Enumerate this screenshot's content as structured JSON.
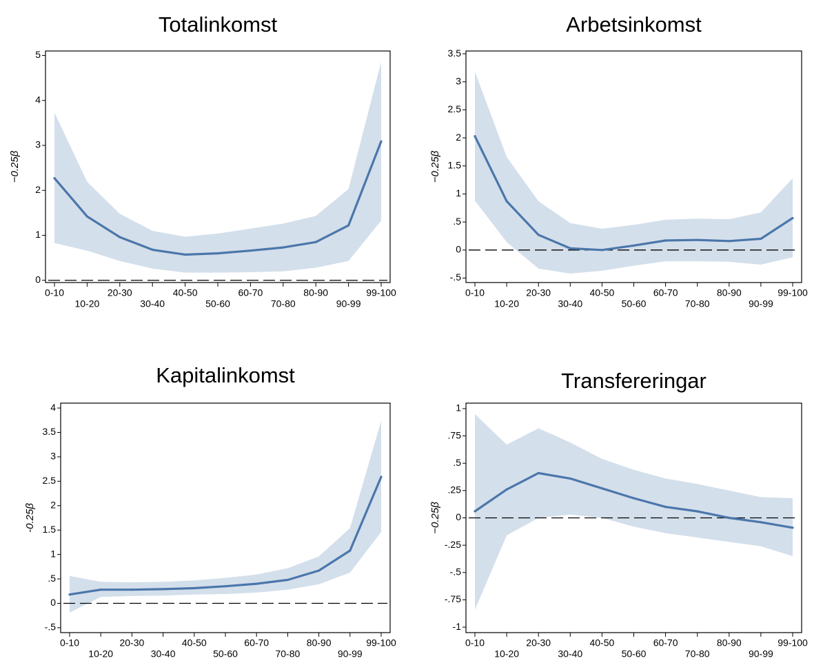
{
  "chart_data": [
    {
      "type": "line",
      "title": "Totalinkomst",
      "xlabel": "",
      "ylabel": "−0.25β",
      "categories": [
        "0-10",
        "10-20",
        "20-30",
        "30-40",
        "40-50",
        "50-60",
        "60-70",
        "70-80",
        "80-90",
        "90-99",
        "99-100"
      ],
      "ylim": [
        -0.05,
        5.1
      ],
      "yticks": [
        0,
        1,
        2,
        3,
        4,
        5
      ],
      "ytick_labels": [
        "0",
        "1",
        "2",
        "3",
        "4",
        "5"
      ],
      "series": [
        {
          "values": [
            2.27,
            1.42,
            0.96,
            0.68,
            0.57,
            0.6,
            0.66,
            0.73,
            0.85,
            1.22,
            3.09
          ],
          "ci_lower": [
            0.83,
            0.66,
            0.43,
            0.26,
            0.17,
            0.17,
            0.18,
            0.2,
            0.28,
            0.43,
            1.33
          ],
          "ci_upper": [
            3.73,
            2.19,
            1.48,
            1.1,
            0.97,
            1.04,
            1.15,
            1.26,
            1.43,
            2.03,
            4.86
          ]
        }
      ],
      "reference_line_y": 0,
      "grid": false
    },
    {
      "type": "line",
      "title": "Arbetsinkomst",
      "xlabel": "",
      "ylabel": "−0.25β",
      "categories": [
        "0-10",
        "10-20",
        "20-30",
        "30-40",
        "40-50",
        "50-60",
        "60-70",
        "70-80",
        "80-90",
        "90-99",
        "99-100"
      ],
      "ylim": [
        -0.58,
        3.55
      ],
      "yticks": [
        -0.5,
        0,
        0.5,
        1,
        1.5,
        2,
        2.5,
        3,
        3.5
      ],
      "ytick_labels": [
        "-.5",
        "0",
        ".5",
        "1",
        "1.5",
        "2",
        "2.5",
        "3",
        "3.5"
      ],
      "series": [
        {
          "values": [
            2.03,
            0.87,
            0.27,
            0.03,
            0.0,
            0.08,
            0.17,
            0.18,
            0.16,
            0.2,
            0.57
          ],
          "ci_lower": [
            0.88,
            0.14,
            -0.33,
            -0.42,
            -0.37,
            -0.28,
            -0.2,
            -0.2,
            -0.21,
            -0.26,
            -0.13
          ],
          "ci_upper": [
            3.18,
            1.66,
            0.87,
            0.48,
            0.38,
            0.45,
            0.54,
            0.56,
            0.55,
            0.67,
            1.28
          ]
        }
      ],
      "reference_line_y": 0,
      "grid": false
    },
    {
      "type": "line",
      "title": "Kapitalinkomst",
      "xlabel": "",
      "ylabel": "-0.25β",
      "categories": [
        "0-10",
        "10-20",
        "20-30",
        "30-40",
        "40-50",
        "50-60",
        "60-70",
        "70-80",
        "80-90",
        "90-99",
        "99-100"
      ],
      "ylim": [
        -0.6,
        4.1
      ],
      "yticks": [
        -0.5,
        0,
        0.5,
        1,
        1.5,
        2,
        2.5,
        3,
        3.5,
        4
      ],
      "ytick_labels": [
        "-.5",
        "0",
        ".5",
        "1",
        "1.5",
        "2",
        "2.5",
        "3",
        "3.5",
        "4"
      ],
      "series": [
        {
          "values": [
            0.18,
            0.28,
            0.28,
            0.29,
            0.31,
            0.35,
            0.4,
            0.48,
            0.67,
            1.08,
            2.59
          ],
          "ci_lower": [
            -0.19,
            0.13,
            0.15,
            0.16,
            0.18,
            0.19,
            0.22,
            0.28,
            0.39,
            0.63,
            1.46
          ],
          "ci_upper": [
            0.56,
            0.44,
            0.43,
            0.44,
            0.47,
            0.52,
            0.59,
            0.72,
            0.96,
            1.54,
            3.74
          ]
        }
      ],
      "reference_line_y": 0,
      "grid": false
    },
    {
      "type": "line",
      "title": "Transfereringar",
      "xlabel": "",
      "ylabel": "−0.25β",
      "categories": [
        "0-10",
        "10-20",
        "20-30",
        "30-40",
        "40-50",
        "50-60",
        "60-70",
        "70-80",
        "80-90",
        "90-99",
        "99-100"
      ],
      "ylim": [
        -1.05,
        1.05
      ],
      "yticks": [
        -1,
        -0.75,
        -0.5,
        -0.25,
        0,
        0.25,
        0.5,
        0.75,
        1
      ],
      "ytick_labels": [
        "-1",
        "-.75",
        "-.5",
        "-.25",
        "0",
        ".25",
        ".5",
        ".75",
        "1"
      ],
      "series": [
        {
          "values": [
            0.06,
            0.26,
            0.41,
            0.36,
            0.27,
            0.18,
            0.1,
            0.06,
            0.0,
            -0.04,
            -0.09
          ],
          "ci_lower": [
            -0.84,
            -0.16,
            0.0,
            0.03,
            0.0,
            -0.08,
            -0.14,
            -0.18,
            -0.22,
            -0.26,
            -0.35
          ],
          "ci_upper": [
            0.95,
            0.67,
            0.82,
            0.69,
            0.54,
            0.44,
            0.36,
            0.31,
            0.25,
            0.19,
            0.18
          ]
        }
      ],
      "reference_line_y": 0,
      "grid": false
    }
  ]
}
